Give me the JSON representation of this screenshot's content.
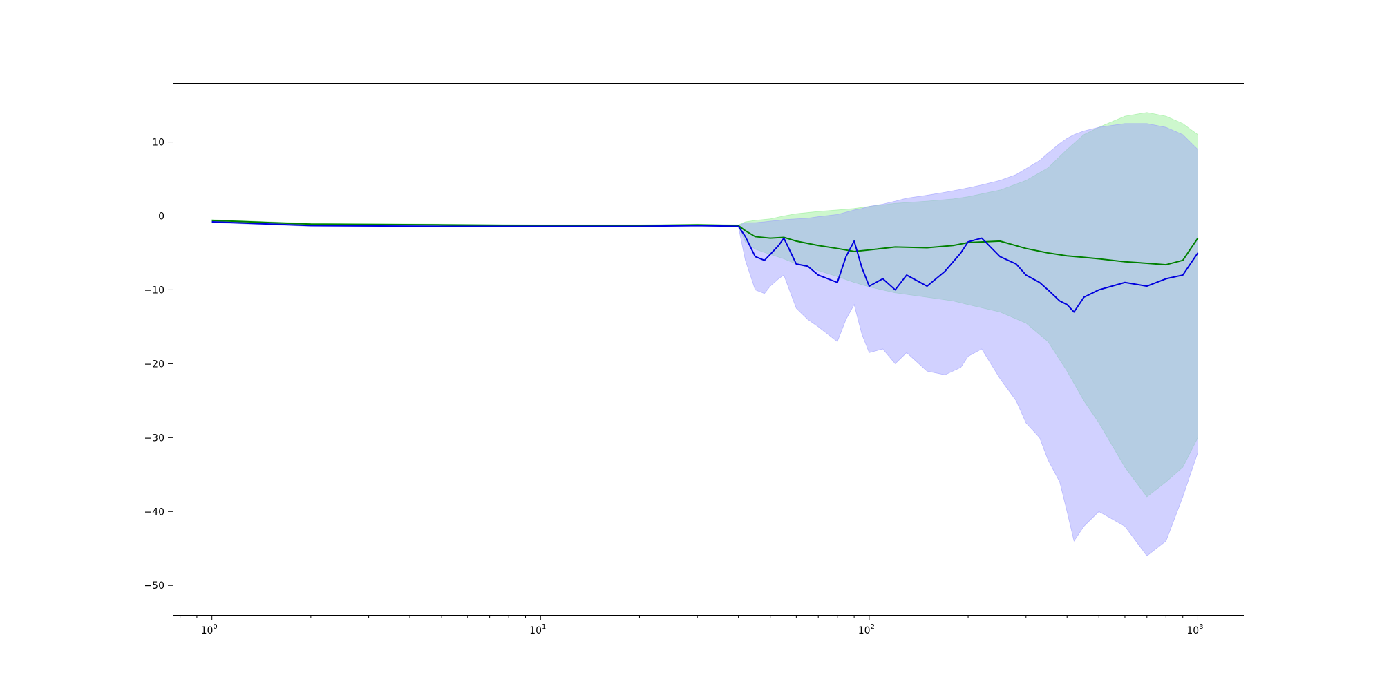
{
  "chart_data": {
    "type": "line",
    "title": "",
    "xlabel": "",
    "ylabel": "",
    "xscale": "log",
    "xlim": [
      0.76,
      1380
    ],
    "ylim": [
      -54,
      18
    ],
    "grid": false,
    "legend": "none",
    "x_ticks": [
      {
        "value": 1,
        "label": "10",
        "exp": "0"
      },
      {
        "value": 10,
        "label": "10",
        "exp": "1"
      },
      {
        "value": 100,
        "label": "10",
        "exp": "2"
      },
      {
        "value": 1000,
        "label": "10",
        "exp": "3"
      }
    ],
    "y_ticks": [
      {
        "value": 10,
        "label": "10"
      },
      {
        "value": 0,
        "label": "0"
      },
      {
        "value": -10,
        "label": "−10"
      },
      {
        "value": -20,
        "label": "−20"
      },
      {
        "value": -30,
        "label": "−30"
      },
      {
        "value": -40,
        "label": "−40"
      },
      {
        "value": -50,
        "label": "−50"
      }
    ],
    "series": [
      {
        "color": "#008000",
        "band_color": "#90ee90",
        "x": [
          1,
          2,
          5,
          10,
          20,
          30,
          40,
          42,
          45,
          50,
          55,
          60,
          70,
          80,
          90,
          100,
          120,
          150,
          180,
          200,
          250,
          300,
          350,
          400,
          450,
          500,
          600,
          700,
          800,
          900,
          1000
        ],
        "y": [
          -0.6,
          -1.1,
          -1.2,
          -1.3,
          -1.3,
          -1.2,
          -1.3,
          -2.0,
          -2.8,
          -3.0,
          -2.9,
          -3.4,
          -4.0,
          -4.4,
          -4.8,
          -4.6,
          -4.2,
          -4.3,
          -4.0,
          -3.6,
          -3.4,
          -4.4,
          -5.0,
          -5.4,
          -5.6,
          -5.8,
          -6.2,
          -6.4,
          -6.6,
          -6.0,
          -3.0
        ],
        "upper": [
          -0.5,
          -1.0,
          -1.1,
          -1.2,
          -1.2,
          -1.1,
          -1.2,
          -0.8,
          -0.6,
          -0.4,
          0.0,
          0.3,
          0.6,
          0.8,
          1.0,
          1.3,
          1.7,
          2.0,
          2.3,
          2.6,
          3.5,
          4.8,
          6.5,
          9.0,
          11.0,
          12.0,
          13.5,
          14.0,
          13.5,
          12.5,
          11.0
        ],
        "lower": [
          -0.7,
          -1.2,
          -1.3,
          -1.4,
          -1.4,
          -1.3,
          -1.4,
          -3.5,
          -4.5,
          -5.2,
          -5.8,
          -6.5,
          -7.4,
          -8.2,
          -9.0,
          -9.6,
          -10.4,
          -11.0,
          -11.5,
          -12.0,
          -13.0,
          -14.5,
          -17.0,
          -21.0,
          -25.0,
          -28.0,
          -34.0,
          -38.0,
          -36.0,
          -34.0,
          -30.0
        ]
      },
      {
        "color": "#0000dd",
        "band_color": "#9999ff",
        "x": [
          1,
          2,
          5,
          10,
          20,
          30,
          40,
          42,
          45,
          48,
          50,
          53,
          55,
          60,
          65,
          70,
          80,
          85,
          90,
          95,
          100,
          110,
          120,
          130,
          150,
          170,
          190,
          200,
          220,
          250,
          280,
          300,
          330,
          350,
          380,
          400,
          420,
          450,
          500,
          600,
          700,
          800,
          900,
          1000
        ],
        "y": [
          -0.8,
          -1.3,
          -1.4,
          -1.4,
          -1.4,
          -1.3,
          -1.4,
          -2.8,
          -5.5,
          -6.0,
          -5.2,
          -4.0,
          -3.0,
          -6.5,
          -6.8,
          -8.0,
          -9.0,
          -5.5,
          -3.4,
          -7.0,
          -9.5,
          -8.5,
          -10.0,
          -8.0,
          -9.5,
          -7.5,
          -5.0,
          -3.5,
          -3.0,
          -5.5,
          -6.5,
          -8.0,
          -9.0,
          -10.0,
          -11.5,
          -12.0,
          -13.0,
          -11.0,
          -10.0,
          -9.0,
          -9.5,
          -8.5,
          -8.0,
          -5.0
        ],
        "upper": [
          -0.7,
          -1.2,
          -1.3,
          -1.3,
          -1.3,
          -1.2,
          -1.3,
          -0.9,
          -0.9,
          -0.8,
          -0.7,
          -0.6,
          -0.5,
          -0.4,
          -0.3,
          -0.1,
          0.2,
          0.5,
          0.8,
          1.0,
          1.3,
          1.6,
          2.0,
          2.4,
          2.8,
          3.2,
          3.6,
          3.8,
          4.2,
          4.8,
          5.6,
          6.4,
          7.5,
          8.5,
          9.8,
          10.5,
          11.0,
          11.5,
          12.0,
          12.5,
          12.5,
          12.0,
          11.0,
          9.0
        ],
        "lower": [
          -0.9,
          -1.4,
          -1.5,
          -1.5,
          -1.5,
          -1.4,
          -1.5,
          -6.0,
          -10.0,
          -10.5,
          -9.5,
          -8.5,
          -8.0,
          -12.5,
          -14.0,
          -15.0,
          -17.0,
          -14.0,
          -12.0,
          -16.0,
          -18.5,
          -18.0,
          -20.0,
          -18.5,
          -21.0,
          -21.5,
          -20.5,
          -19.0,
          -18.0,
          -22.0,
          -25.0,
          -28.0,
          -30.0,
          -33.0,
          -36.0,
          -40.0,
          -44.0,
          -42.0,
          -40.0,
          -42.0,
          -46.0,
          -44.0,
          -38.0,
          -32.0
        ]
      }
    ]
  }
}
